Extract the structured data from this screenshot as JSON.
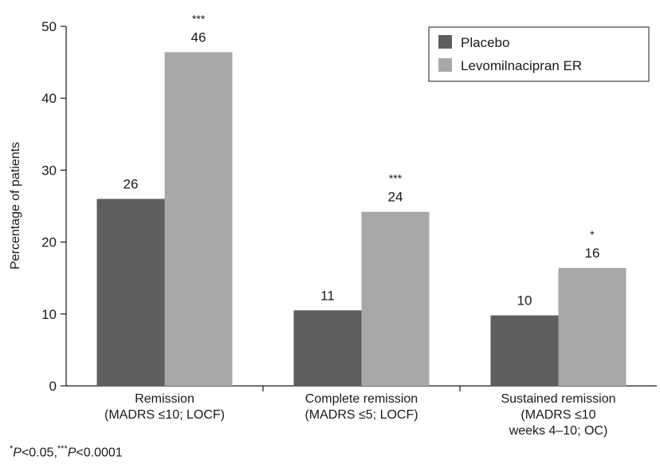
{
  "chart_data": {
    "type": "bar",
    "ylabel": "Percentage of patients",
    "ylim": [
      0,
      50
    ],
    "yticks": [
      0,
      10,
      20,
      30,
      40,
      50
    ],
    "categories": [
      [
        "Remission",
        "(MADRS ≤10; LOCF)"
      ],
      [
        "Complete remission",
        "(MADRS ≤5; LOCF)"
      ],
      [
        "Sustained remission",
        "(MADRS ≤10",
        "weeks 4–10; OC)"
      ]
    ],
    "series": [
      {
        "name": "Placebo",
        "color": "#5e5e5e",
        "values": [
          26,
          10.5,
          9.8
        ],
        "labels": [
          "26",
          "11",
          "10"
        ],
        "significance": [
          "",
          "",
          ""
        ]
      },
      {
        "name": "Levomilnacipran ER",
        "color": "#a8a8a8",
        "values": [
          46.4,
          24.2,
          16.4
        ],
        "labels": [
          "46",
          "24",
          "16"
        ],
        "significance": [
          "***",
          "***",
          "*"
        ]
      }
    ],
    "legend_position": "top-right",
    "grid": false
  },
  "footnote": {
    "sym1": "*",
    "p1": "P",
    "lt1": "<0.05,",
    "sym2": "***",
    "p2": "P",
    "lt2": "<0.0001"
  }
}
